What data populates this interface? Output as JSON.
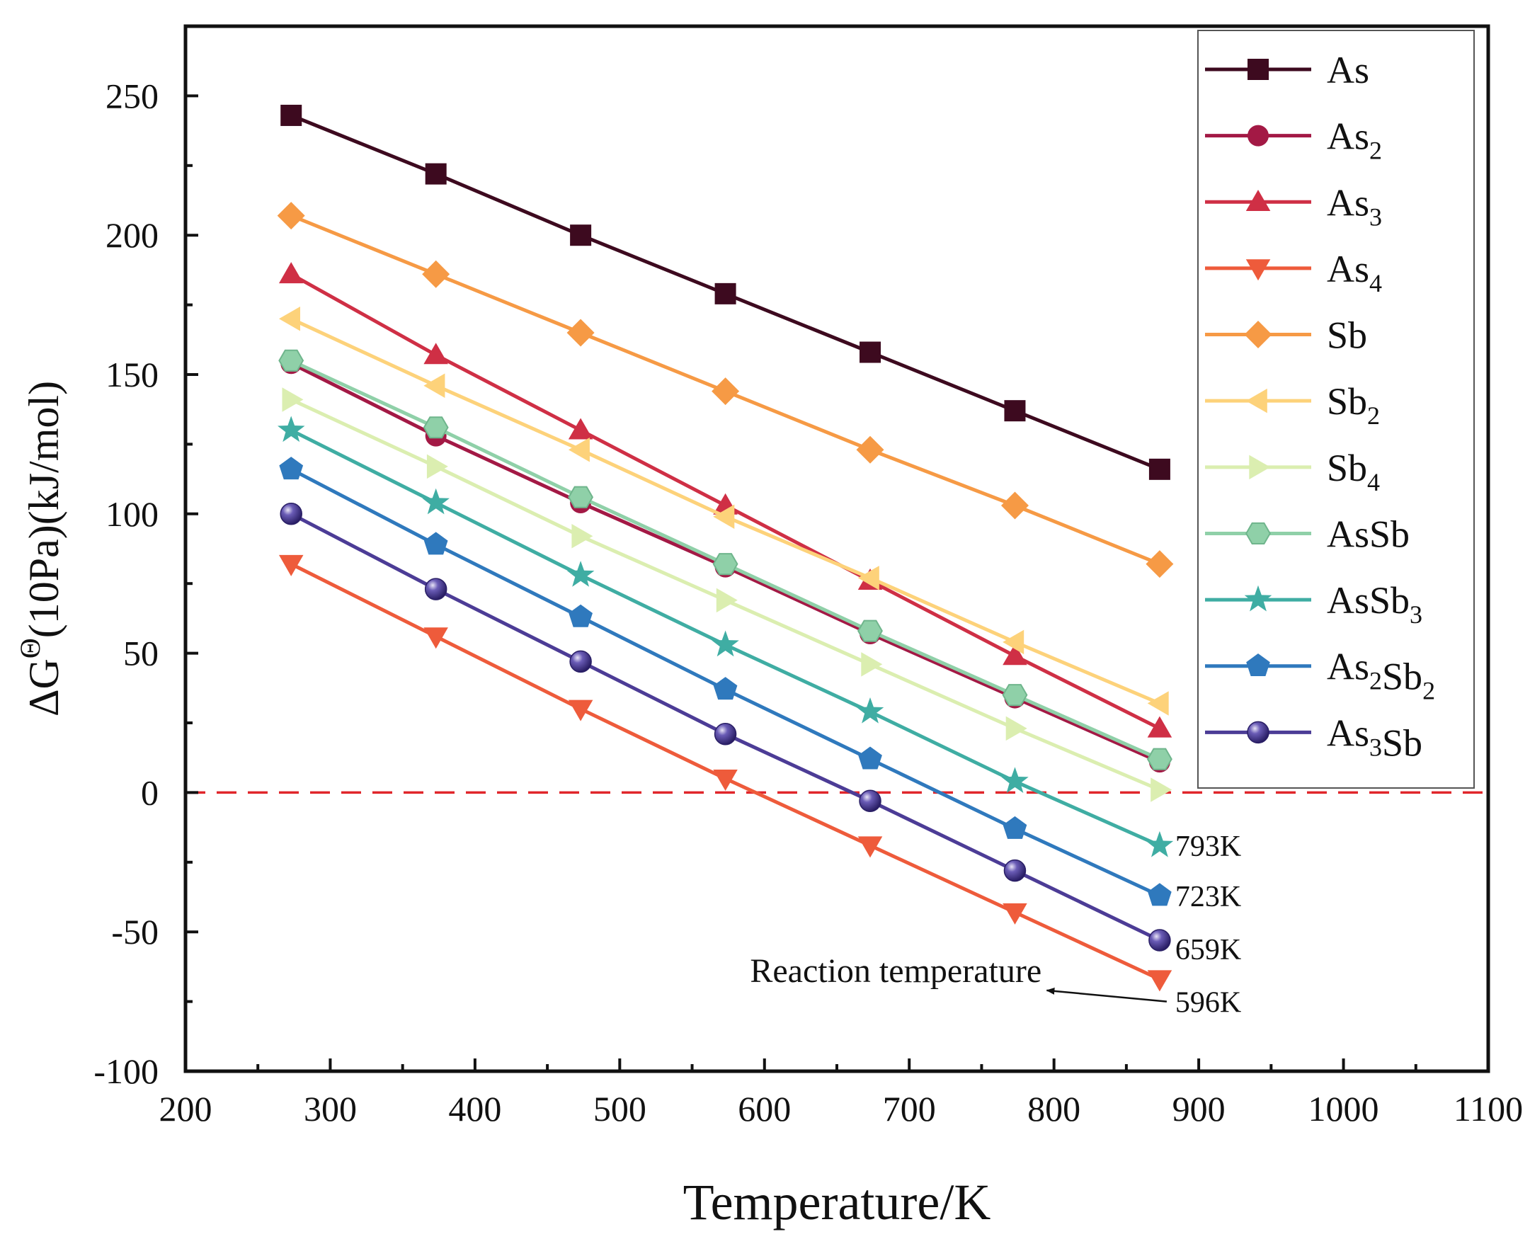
{
  "chart_data": {
    "type": "line",
    "title": "",
    "xlabel": "Temperature/K",
    "ylabel": {
      "base": "ΔG",
      "sup": "Θ",
      "rest": "(10Pa)(kJ/mol)"
    },
    "xlim": [
      200,
      1100
    ],
    "ylim": [
      -100,
      275
    ],
    "x_ticks": [
      200,
      300,
      400,
      500,
      600,
      700,
      800,
      900,
      1000,
      1100
    ],
    "y_ticks": [
      -100,
      -50,
      0,
      50,
      100,
      150,
      200,
      250
    ],
    "x": [
      273,
      373,
      473,
      573,
      673,
      773,
      873
    ],
    "reference_line": {
      "y": 0,
      "color": "#e0262b",
      "style": "dashed"
    },
    "legend_position": "top-right",
    "series": [
      {
        "name": "As",
        "name_parts": [
          [
            "As",
            ""
          ]
        ],
        "color": "#3d0a1f",
        "marker": "square",
        "values": [
          243,
          222,
          200,
          179,
          158,
          137,
          116
        ]
      },
      {
        "name": "As2",
        "name_parts": [
          [
            "As",
            "2"
          ]
        ],
        "color": "#a31945",
        "marker": "circle",
        "values": [
          154,
          128,
          104,
          81,
          57,
          34,
          11
        ]
      },
      {
        "name": "As3",
        "name_parts": [
          [
            "As",
            "3"
          ]
        ],
        "color": "#cf2f45",
        "marker": "triangle-up",
        "values": [
          186,
          157,
          130,
          103,
          76,
          49,
          23
        ]
      },
      {
        "name": "As4",
        "name_parts": [
          [
            "As",
            "4"
          ]
        ],
        "color": "#ee5b3b",
        "marker": "triangle-down",
        "values": [
          82,
          56,
          30,
          5,
          -19,
          -43,
          -67
        ]
      },
      {
        "name": "Sb",
        "name_parts": [
          [
            "Sb",
            ""
          ]
        ],
        "color": "#f69a45",
        "marker": "diamond",
        "values": [
          207,
          186,
          165,
          144,
          123,
          103,
          82
        ]
      },
      {
        "name": "Sb2",
        "name_parts": [
          [
            "Sb",
            "2"
          ]
        ],
        "color": "#fdd27a",
        "marker": "triangle-left",
        "values": [
          170,
          146,
          123,
          99,
          77,
          54,
          32
        ]
      },
      {
        "name": "Sb4",
        "name_parts": [
          [
            "Sb",
            "4"
          ]
        ],
        "color": "#dbeeb0",
        "marker": "triangle-right",
        "values": [
          141,
          117,
          92,
          69,
          46,
          23,
          1
        ]
      },
      {
        "name": "AsSb",
        "name_parts": [
          [
            "AsSb",
            ""
          ]
        ],
        "color": "#8fd0a8",
        "marker": "hexagon",
        "values": [
          155,
          131,
          106,
          82,
          58,
          35,
          12
        ]
      },
      {
        "name": "AsSb3",
        "name_parts": [
          [
            "AsSb",
            "3"
          ]
        ],
        "color": "#3fada3",
        "marker": "star",
        "values": [
          130,
          104,
          78,
          53,
          29,
          4,
          -19
        ]
      },
      {
        "name": "As2Sb2",
        "name_parts": [
          [
            "As",
            "2"
          ],
          [
            "Sb",
            "2"
          ]
        ],
        "color": "#2f79bd",
        "marker": "pentagon",
        "values": [
          116,
          89,
          63,
          37,
          12,
          -13,
          -37
        ]
      },
      {
        "name": "As3Sb",
        "name_parts": [
          [
            "As",
            "3"
          ],
          [
            "Sb",
            ""
          ]
        ],
        "color": "#4c3c96",
        "marker": "sphere",
        "values": [
          100,
          73,
          47,
          21,
          -3,
          -28,
          -53
        ]
      }
    ],
    "annotations": {
      "temperature_labels": [
        {
          "text": "793K",
          "x": 873,
          "y": -19
        },
        {
          "text": "723K",
          "x": 873,
          "y": -37
        },
        {
          "text": "659K",
          "x": 873,
          "y": -56
        },
        {
          "text": "596K",
          "x": 873,
          "y": -75
        }
      ],
      "callout": {
        "text": "Reaction temperature",
        "text_at": [
          590,
          -68
        ],
        "arrow_from": [
          873,
          -75
        ],
        "arrow_to": [
          795,
          -71
        ]
      }
    }
  }
}
